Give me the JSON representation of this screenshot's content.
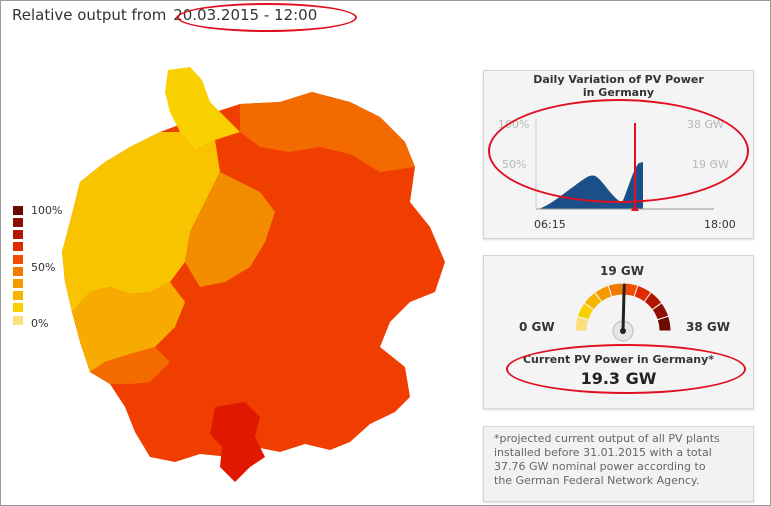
{
  "header": {
    "prefix": "Relative output from",
    "datetime": "20.03.2015 - 12:00"
  },
  "legend": {
    "labels": [
      "100%",
      "50%",
      "0%"
    ],
    "colors": [
      "#6b0a00",
      "#8e0f00",
      "#b31500",
      "#e02a00",
      "#ef4d00",
      "#f07a00",
      "#f39a00",
      "#f6b600",
      "#f9d000",
      "#fbdf7a"
    ]
  },
  "map": {
    "colors": {
      "high": "#f03e00",
      "mid_high": "#f26a00",
      "mid": "#f48c00",
      "mid_low": "#f7aa00",
      "low": "#f8c400",
      "lowest": "#fad100",
      "peak": "#e01800"
    }
  },
  "daily_chart": {
    "title_line1": "Daily Variation of PV Power",
    "title_line2": "in Germany",
    "left_labels": [
      "100%",
      "50%"
    ],
    "right_labels": [
      "38 GW",
      "19 GW"
    ],
    "x_labels": [
      "06:15",
      "18:00"
    ],
    "fill_color": "#1a4f8a",
    "marker_color": "#e01020"
  },
  "gauge": {
    "min_label": "0 GW",
    "mid_label": "19 GW",
    "max_label": "38 GW",
    "title": "Current PV Power in Germany*",
    "value": "19.3 GW",
    "level_fraction": 0.508
  },
  "footnote": {
    "text": "*projected current output of all PV plants installed before 31.01.2015 with a total 37.76 GW nominal power according to the German Federal Network Agency."
  },
  "annotations": {
    "highlight_color": "#e01020"
  }
}
